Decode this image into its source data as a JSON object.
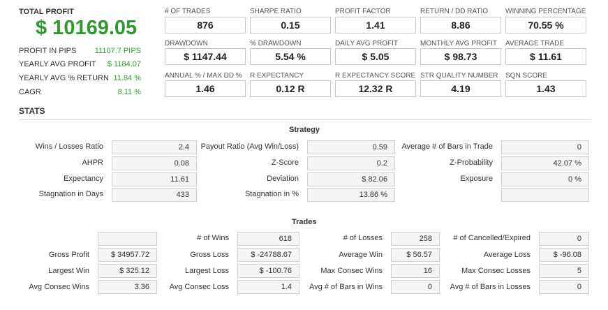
{
  "summary": {
    "total_profit_label": "TOTAL PROFIT",
    "total_profit_value": "$ 10169.05",
    "rows": [
      {
        "label": "PROFIT IN PIPS",
        "value": "11107.7 PIPS"
      },
      {
        "label": "YEARLY AVG PROFIT",
        "value": "$ 1184.07"
      },
      {
        "label": "YEARLY AVG % RETURN",
        "value": "11.84 %"
      },
      {
        "label": "CAGR",
        "value": "8.11 %"
      }
    ]
  },
  "kpis": [
    {
      "label": "# OF TRADES",
      "value": "876"
    },
    {
      "label": "SHARPE RATIO",
      "value": "0.15"
    },
    {
      "label": "PROFIT FACTOR",
      "value": "1.41"
    },
    {
      "label": "RETURN / DD RATIO",
      "value": "8.86"
    },
    {
      "label": "WINNING PERCENTAGE",
      "value": "70.55 %"
    },
    {
      "label": "DRAWDOWN",
      "value": "$ 1147.44"
    },
    {
      "label": "% DRAWDOWN",
      "value": "5.54 %"
    },
    {
      "label": "DAILY AVG PROFIT",
      "value": "$ 5.05"
    },
    {
      "label": "MONTHLY AVG PROFIT",
      "value": "$ 98.73"
    },
    {
      "label": "AVERAGE TRADE",
      "value": "$ 11.61"
    },
    {
      "label": "ANNUAL % / MAX DD %",
      "value": "1.46"
    },
    {
      "label": "R EXPECTANCY",
      "value": "0.12 R"
    },
    {
      "label": "R EXPECTANCY SCORE",
      "value": "12.32 R"
    },
    {
      "label": "STR QUALITY NUMBER",
      "value": "4.19"
    },
    {
      "label": "SQN SCORE",
      "value": "1.43"
    }
  ],
  "stats_title": "STATS",
  "strategy": {
    "title": "Strategy",
    "rows": [
      [
        {
          "label": "Wins / Losses Ratio",
          "value": "2.4"
        },
        {
          "label": "Payout Ratio (Avg Win/Loss)",
          "value": "0.59"
        },
        {
          "label": "Average # of Bars in Trade",
          "value": "0"
        }
      ],
      [
        {
          "label": "AHPR",
          "value": "0.08"
        },
        {
          "label": "Z-Score",
          "value": "0.2"
        },
        {
          "label": "Z-Probability",
          "value": "42.07 %"
        }
      ],
      [
        {
          "label": "Expectancy",
          "value": "11.61"
        },
        {
          "label": "Deviation",
          "value": "$ 82.06"
        },
        {
          "label": "Exposure",
          "value": "0 %"
        }
      ],
      [
        {
          "label": "Stagnation in Days",
          "value": "433"
        },
        {
          "label": "Stagnation in %",
          "value": "13.86 %"
        },
        {
          "label": "",
          "value": ""
        }
      ]
    ]
  },
  "trades": {
    "title": "Trades",
    "rows": [
      [
        {
          "label": "",
          "value": ""
        },
        {
          "label": "# of Wins",
          "value": "618"
        },
        {
          "label": "# of Losses",
          "value": "258"
        },
        {
          "label": "# of Cancelled/Expired",
          "value": "0"
        }
      ],
      [
        {
          "label": "Gross Profit",
          "value": "$ 34957.72"
        },
        {
          "label": "Gross Loss",
          "value": "$ -24788.67"
        },
        {
          "label": "Average Win",
          "value": "$ 56.57"
        },
        {
          "label": "Average Loss",
          "value": "$ -96.08"
        }
      ],
      [
        {
          "label": "Largest Win",
          "value": "$ 325.12"
        },
        {
          "label": "Largest Loss",
          "value": "$ -100.76"
        },
        {
          "label": "Max Consec Wins",
          "value": "16"
        },
        {
          "label": "Max Consec Losses",
          "value": "5"
        }
      ],
      [
        {
          "label": "Avg Consec Wins",
          "value": "3.36"
        },
        {
          "label": "Avg Consec Loss",
          "value": "1.4"
        },
        {
          "label": "Avg # of Bars in Wins",
          "value": "0"
        },
        {
          "label": "Avg # of Bars in Losses",
          "value": "0"
        }
      ]
    ]
  }
}
